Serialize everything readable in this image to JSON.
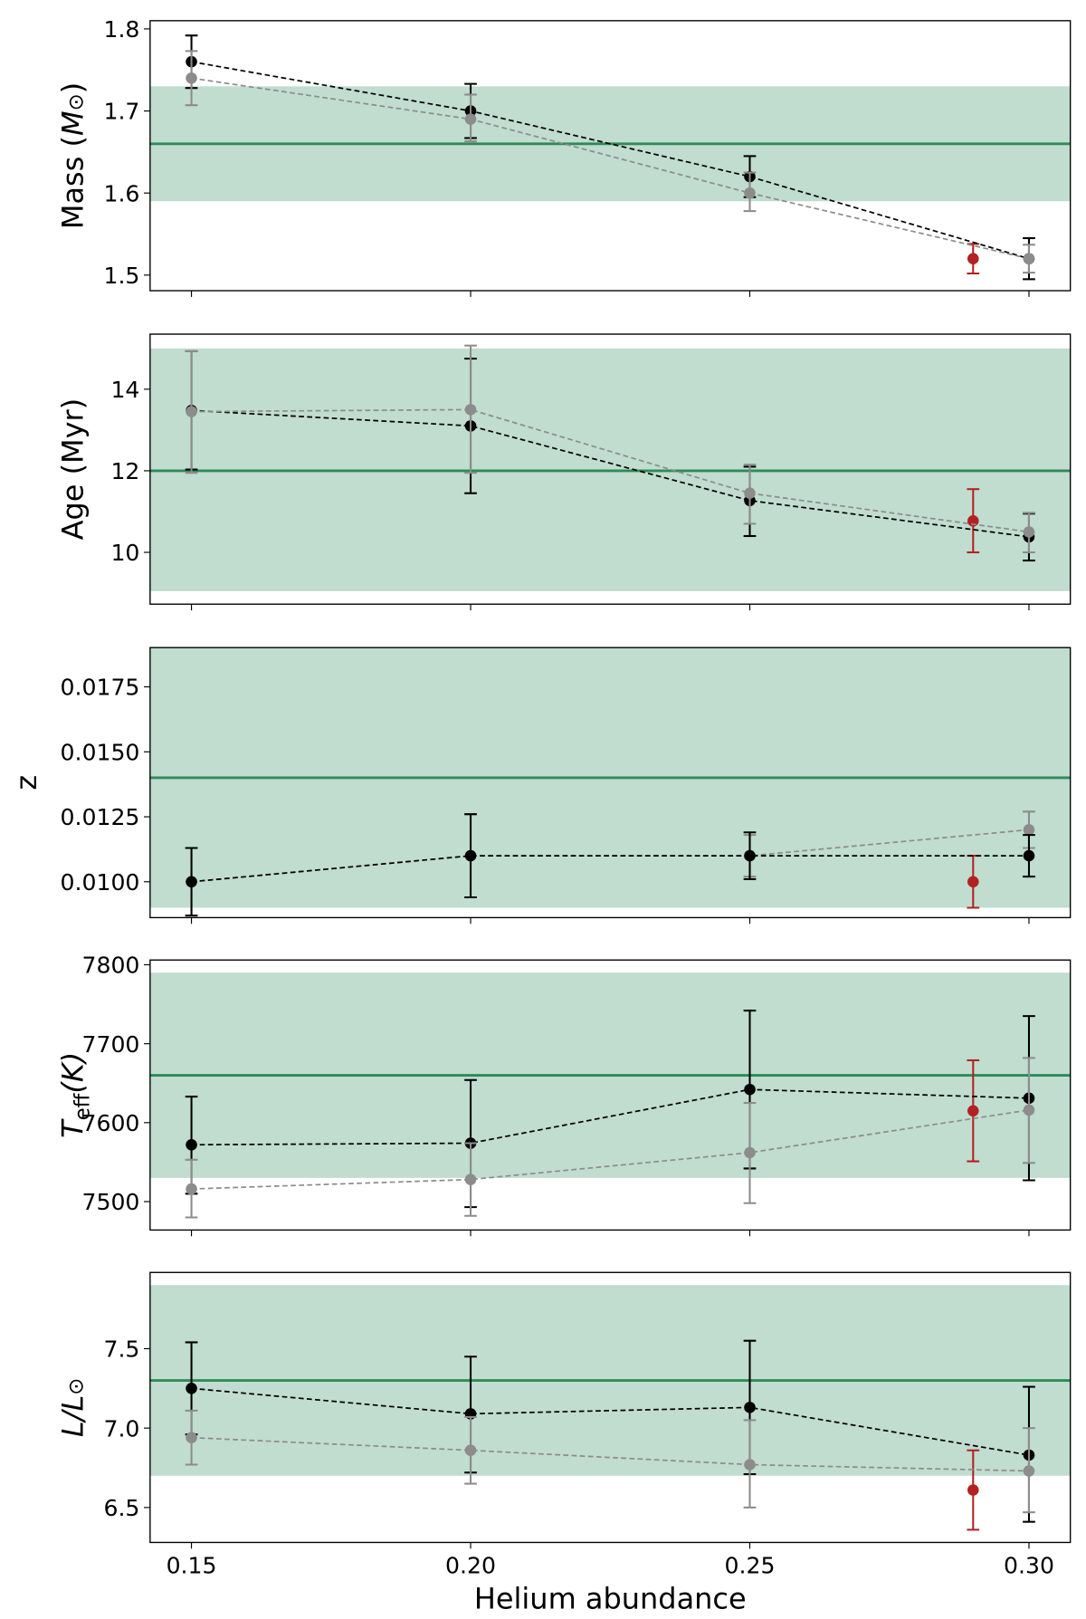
{
  "chart_data": [
    {
      "type": "line",
      "ylabel": "Mass (M⊙)",
      "ylabel_main": "Mass (",
      "ylabel_sym": "M",
      "ylabel_sub": "⊙",
      "ylabel_end": ")",
      "ylim": [
        1.481,
        1.81
      ],
      "yticks": [
        "1.5",
        "1.6",
        "1.7",
        "1.8"
      ],
      "band": [
        1.59,
        1.73
      ],
      "ref_line": 1.66,
      "x": [
        0.15,
        0.2,
        0.25,
        0.3
      ],
      "series": [
        {
          "color": "#000000",
          "y": [
            1.76,
            1.7,
            1.62,
            1.52
          ],
          "lo": [
            1.728,
            1.667,
            1.595,
            1.495
          ],
          "hi": [
            1.792,
            1.733,
            1.645,
            1.545
          ]
        },
        {
          "color": "#8c8c8c",
          "y": [
            1.74,
            1.69,
            1.6,
            1.52
          ],
          "lo": [
            1.707,
            1.663,
            1.578,
            1.503
          ],
          "hi": [
            1.773,
            1.72,
            1.625,
            1.537
          ]
        }
      ],
      "extra_point": {
        "color": "#b22222",
        "x": 0.29,
        "y": 1.52,
        "lo": 1.502,
        "hi": 1.538
      }
    },
    {
      "type": "line",
      "ylabel": "Age (Myr)",
      "ylim": [
        8.73,
        15.35
      ],
      "yticks": [
        "10",
        "12",
        "14"
      ],
      "band": [
        9.05,
        15.0
      ],
      "ref_line": 12,
      "x": [
        0.15,
        0.2,
        0.25,
        0.3
      ],
      "series": [
        {
          "color": "#000000",
          "y": [
            13.48,
            13.1,
            11.27,
            10.38
          ],
          "lo": [
            12.03,
            11.45,
            10.4,
            9.8
          ],
          "hi": [
            14.93,
            14.75,
            12.1,
            10.95
          ]
        },
        {
          "color": "#8c8c8c",
          "y": [
            13.45,
            13.5,
            11.45,
            10.5
          ],
          "lo": [
            11.95,
            11.95,
            10.7,
            10.0
          ],
          "hi": [
            14.93,
            15.07,
            12.15,
            10.97
          ]
        }
      ],
      "extra_point": {
        "color": "#b22222",
        "x": 0.29,
        "y": 10.77,
        "lo": 10.0,
        "hi": 11.55
      }
    },
    {
      "type": "line",
      "ylabel": "z",
      "ylim": [
        0.00862,
        0.01901
      ],
      "yticks": [
        "0.0100",
        "0.0125",
        "0.0150",
        "0.0175"
      ],
      "band": [
        0.009,
        0.019
      ],
      "ref_line": 0.014,
      "x": [
        0.15,
        0.2,
        0.25,
        0.3
      ],
      "series": [
        {
          "color": "#8c8c8c",
          "y": [
            0.01,
            0.011,
            0.011,
            0.012
          ],
          "lo": [
            0.0087,
            0.0094,
            0.0102,
            0.0113
          ],
          "hi": [
            0.0113,
            0.0126,
            0.0118,
            0.0127
          ]
        },
        {
          "color": "#000000",
          "y": [
            0.01,
            0.011,
            0.011,
            0.011
          ],
          "lo": [
            0.0087,
            0.0094,
            0.0101,
            0.0102
          ],
          "hi": [
            0.0113,
            0.0126,
            0.0119,
            0.0118
          ]
        }
      ],
      "extra_point": {
        "color": "#b22222",
        "x": 0.29,
        "y": 0.01,
        "lo": 0.009,
        "hi": 0.011
      }
    },
    {
      "type": "line",
      "ylabel": "Teff (K)",
      "ylabel_main": "T",
      "ylabel_sub": "eff",
      "ylabel_end": "(K)",
      "ylim": [
        7464,
        7806
      ],
      "yticks": [
        "7500",
        "7600",
        "7700",
        "7800"
      ],
      "band": [
        7530,
        7790
      ],
      "ref_line": 7660,
      "x": [
        0.15,
        0.2,
        0.25,
        0.3
      ],
      "series": [
        {
          "color": "#000000",
          "y": [
            7572,
            7574,
            7642,
            7631
          ],
          "lo": [
            7510,
            7493,
            7542,
            7527
          ],
          "hi": [
            7633,
            7654,
            7742,
            7735
          ]
        },
        {
          "color": "#8c8c8c",
          "y": [
            7516,
            7528,
            7562,
            7616
          ],
          "lo": [
            7480,
            7482,
            7498,
            7549
          ],
          "hi": [
            7553,
            7574,
            7625,
            7682
          ]
        }
      ],
      "extra_point": {
        "color": "#b22222",
        "x": 0.29,
        "y": 7615,
        "lo": 7551,
        "hi": 7679
      }
    },
    {
      "type": "line",
      "ylabel": "L/L⊙",
      "ylabel_main": "L/L",
      "ylabel_sub": "⊙",
      "xlabel": "Helium abundance",
      "xticks": [
        "0.15",
        "0.20",
        "0.25",
        "0.30"
      ],
      "ylim": [
        6.28,
        7.98
      ],
      "yticks": [
        "6.5",
        "7.0",
        "7.5"
      ],
      "band": [
        6.7,
        7.9
      ],
      "ref_line": 7.3,
      "x": [
        0.15,
        0.2,
        0.25,
        0.3
      ],
      "series": [
        {
          "color": "#000000",
          "y": [
            7.25,
            7.09,
            7.13,
            6.83
          ],
          "lo": [
            6.96,
            6.72,
            6.71,
            6.41
          ],
          "hi": [
            7.54,
            7.45,
            7.55,
            7.26
          ]
        },
        {
          "color": "#8c8c8c",
          "y": [
            6.94,
            6.86,
            6.77,
            6.73
          ],
          "lo": [
            6.77,
            6.65,
            6.5,
            6.47
          ],
          "hi": [
            7.11,
            7.07,
            7.05,
            7.0
          ]
        }
      ],
      "extra_point": {
        "color": "#b22222",
        "x": 0.29,
        "y": 6.61,
        "lo": 6.36,
        "hi": 6.86
      }
    }
  ],
  "colors": {
    "band": "#c0ddcf",
    "ref_line": "#2e8b57"
  }
}
